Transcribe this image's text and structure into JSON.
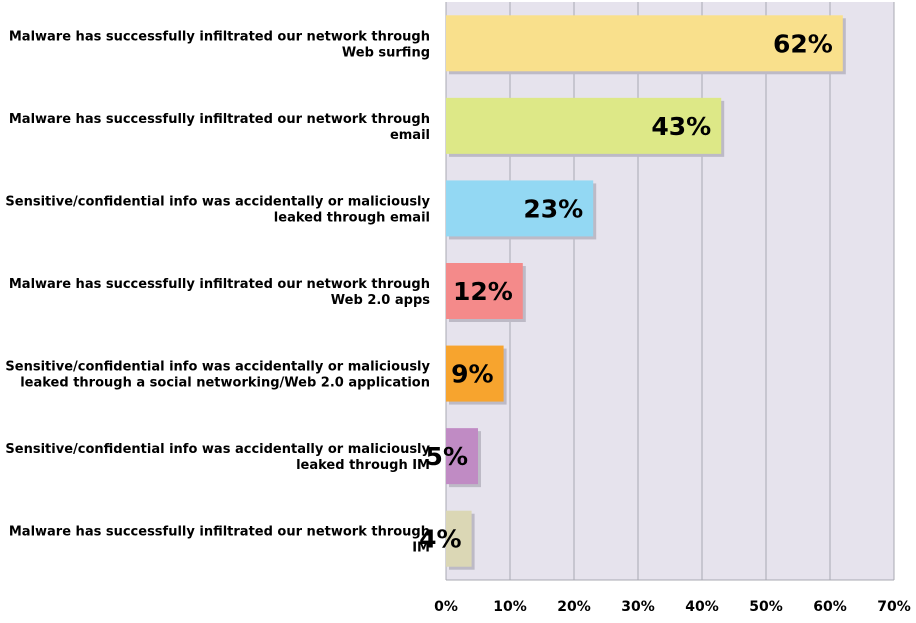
{
  "chart_data": {
    "type": "bar",
    "orientation": "horizontal",
    "categories": [
      "Malware has successfully infiltrated our network through Web surfing",
      "Malware has successfully infiltrated our network through email",
      "Sensitive/confidential info was accidentally or maliciously leaked through email",
      "Malware has successfully infiltrated our network through Web 2.0 apps",
      "Sensitive/confidential info was accidentally or maliciously leaked through a social networking/Web 2.0 application",
      "Sensitive/confidential info was accidentally or maliciously leaked through IM",
      "Malware has successfully infiltrated our network through IM"
    ],
    "category_lines": [
      [
        "Malware has successfully infiltrated our network through",
        "Web surfing"
      ],
      [
        "Malware has successfully infiltrated our network through",
        "email"
      ],
      [
        "Sensitive/confidential info was accidentally or maliciously",
        "leaked through email"
      ],
      [
        "Malware has successfully infiltrated our network through",
        "Web 2.0 apps"
      ],
      [
        "Sensitive/confidential info was accidentally or maliciously",
        "leaked through a social networking/Web 2.0 application"
      ],
      [
        "Sensitive/confidential info was accidentally or maliciously",
        "leaked through IM"
      ],
      [
        "Malware has successfully infiltrated our network through",
        "IM"
      ]
    ],
    "values": [
      62,
      43,
      23,
      12,
      9,
      5,
      4
    ],
    "data_labels": [
      "62%",
      "43%",
      "23%",
      "12%",
      "9%",
      "5%",
      "4%"
    ],
    "bar_colors": [
      "#f9e08c",
      "#dde887",
      "#93d8f3",
      "#f48a8a",
      "#f7a42e",
      "#c08bc4",
      "#dbd7b5"
    ],
    "xlim": [
      0,
      70
    ],
    "x_ticks": [
      0,
      10,
      20,
      30,
      40,
      50,
      60,
      70
    ],
    "x_tick_labels": [
      "0%",
      "10%",
      "20%",
      "30%",
      "40%",
      "50%",
      "60%",
      "70%"
    ],
    "grid": true,
    "plot_background": "#e6e3ed",
    "gridline_color": "#a8a8b2"
  }
}
